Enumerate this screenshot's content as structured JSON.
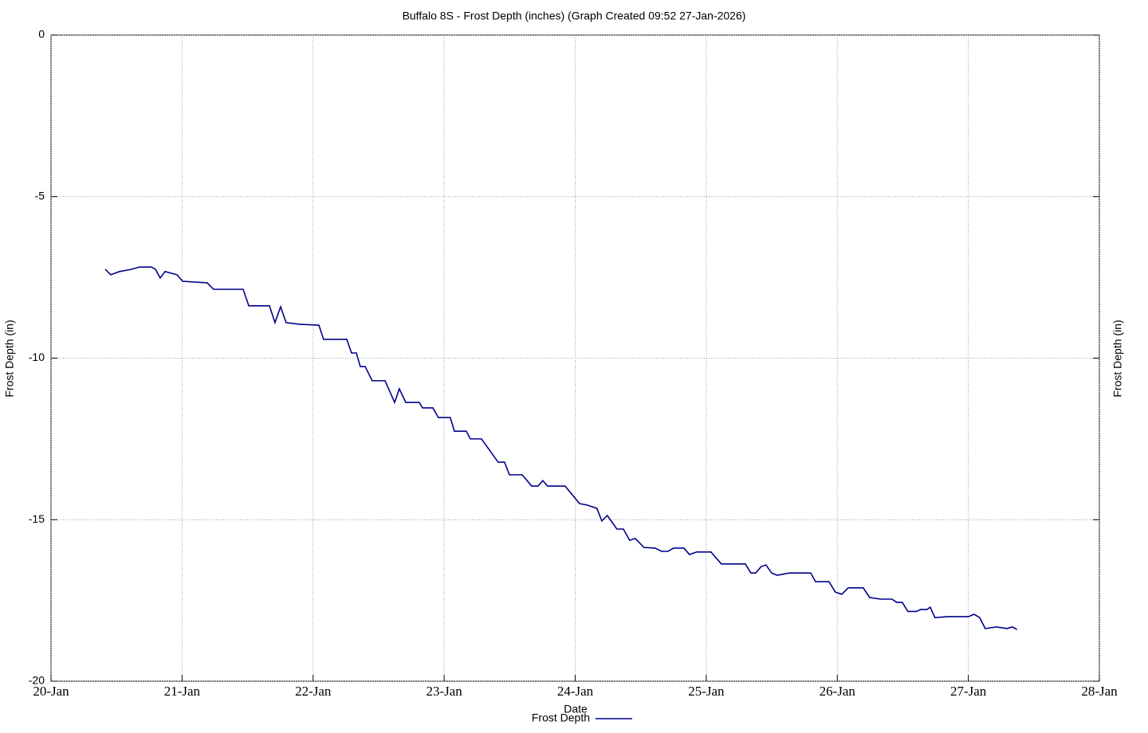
{
  "chart_data": {
    "type": "line",
    "title": "Buffalo 8S - Frost Depth (inches) (Graph Created 09:52 27-Jan-2026)",
    "x_label": "Date",
    "y_label": "Frost Depth (in)",
    "y2_label": "Frost Depth (in)",
    "xlim": [
      0,
      8
    ],
    "xticks": [
      {
        "value": 0,
        "label": "20-Jan"
      },
      {
        "value": 1,
        "label": "21-Jan"
      },
      {
        "value": 2,
        "label": "22-Jan"
      },
      {
        "value": 3,
        "label": "23-Jan"
      },
      {
        "value": 4,
        "label": "24-Jan"
      },
      {
        "value": 5,
        "label": "25-Jan"
      },
      {
        "value": 6,
        "label": "26-Jan"
      },
      {
        "value": 7,
        "label": "27-Jan"
      },
      {
        "value": 8,
        "label": "28-Jan"
      }
    ],
    "ylim": [
      -20,
      0
    ],
    "yticks": [
      0,
      -5,
      -10,
      -15,
      -20
    ],
    "grid": true,
    "legend": "bottom",
    "x": [
      0.414,
      0.456,
      0.523,
      0.614,
      0.675,
      0.766,
      0.797,
      0.833,
      0.87,
      0.961,
      1.004,
      1.192,
      1.241,
      1.466,
      1.509,
      1.667,
      1.709,
      1.752,
      1.794,
      1.891,
      2.044,
      2.08,
      2.257,
      2.293,
      2.33,
      2.36,
      2.397,
      2.451,
      2.549,
      2.622,
      2.658,
      2.707,
      2.81,
      2.835,
      2.914,
      2.956,
      3.047,
      3.078,
      3.169,
      3.2,
      3.285,
      3.412,
      3.461,
      3.498,
      3.595,
      3.668,
      3.716,
      3.753,
      3.789,
      3.923,
      4.033,
      4.093,
      4.166,
      4.203,
      4.245,
      4.318,
      4.367,
      4.416,
      4.458,
      4.525,
      4.611,
      4.659,
      4.708,
      4.751,
      4.83,
      4.872,
      4.927,
      5.036,
      5.115,
      5.298,
      5.341,
      5.377,
      5.42,
      5.456,
      5.499,
      5.541,
      5.633,
      5.797,
      5.834,
      5.937,
      5.985,
      6.034,
      6.083,
      6.198,
      6.247,
      6.332,
      6.417,
      6.454,
      6.496,
      6.539,
      6.606,
      6.636,
      6.685,
      6.709,
      6.745,
      6.843,
      7.001,
      7.044,
      7.086,
      7.129,
      7.214,
      7.263,
      7.293,
      7.336,
      7.372
    ],
    "series": [
      {
        "name": "Frost Depth",
        "color": "#00008b",
        "values": [
          -7.25,
          -7.42,
          -7.32,
          -7.25,
          -7.18,
          -7.18,
          -7.25,
          -7.52,
          -7.32,
          -7.42,
          -7.62,
          -7.67,
          -7.87,
          -7.87,
          -8.38,
          -8.38,
          -8.9,
          -8.41,
          -8.9,
          -8.95,
          -8.98,
          -9.42,
          -9.42,
          -9.84,
          -9.84,
          -10.26,
          -10.26,
          -10.7,
          -10.7,
          -11.37,
          -10.95,
          -11.37,
          -11.37,
          -11.54,
          -11.54,
          -11.84,
          -11.84,
          -12.26,
          -12.26,
          -12.5,
          -12.5,
          -13.22,
          -13.22,
          -13.61,
          -13.61,
          -13.96,
          -13.96,
          -13.79,
          -13.96,
          -13.96,
          -14.5,
          -14.55,
          -14.65,
          -15.04,
          -14.87,
          -15.29,
          -15.29,
          -15.64,
          -15.58,
          -15.86,
          -15.88,
          -15.98,
          -15.98,
          -15.88,
          -15.88,
          -16.08,
          -16.0,
          -16.0,
          -16.37,
          -16.37,
          -16.65,
          -16.65,
          -16.45,
          -16.4,
          -16.65,
          -16.72,
          -16.65,
          -16.65,
          -16.92,
          -16.92,
          -17.24,
          -17.31,
          -17.11,
          -17.11,
          -17.41,
          -17.46,
          -17.46,
          -17.56,
          -17.56,
          -17.84,
          -17.84,
          -17.78,
          -17.78,
          -17.71,
          -18.03,
          -18.0,
          -18.0,
          -17.93,
          -18.03,
          -18.37,
          -18.32,
          -18.35,
          -18.37,
          -18.32,
          -18.4
        ]
      }
    ]
  }
}
